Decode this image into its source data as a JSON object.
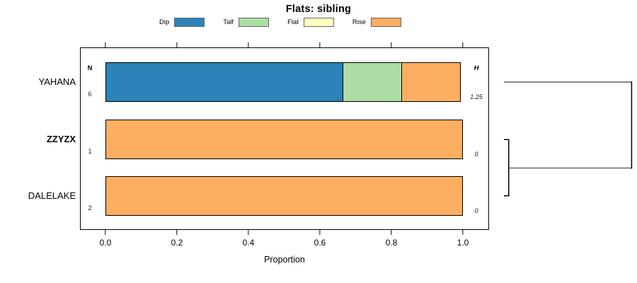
{
  "title": "Flats: sibling",
  "legend": {
    "items": [
      {
        "label": "Dip",
        "color": "#2B83BA"
      },
      {
        "label": "Talf",
        "color": "#ABDDA4"
      },
      {
        "label": "Flat",
        "color": "#FFFFBF"
      },
      {
        "label": "Rise",
        "color": "#FDAE61"
      }
    ]
  },
  "columns": {
    "n_header": "N",
    "h_header": "H"
  },
  "axis": {
    "label": "Proportion",
    "ticks": [
      "0.0",
      "0.2",
      "0.4",
      "0.6",
      "0.8",
      "1.0"
    ],
    "range": [
      0,
      1
    ]
  },
  "chart_data": {
    "type": "bar",
    "orientation": "horizontal",
    "stacked": true,
    "title": "Flats: sibling",
    "xlabel": "Proportion",
    "xlim": [
      0,
      1
    ],
    "grid": false,
    "legend_position": "top",
    "categories": [
      "YAHANA",
      "ZZYZX",
      "DALELAKE"
    ],
    "bold_categories": [
      "ZZYZX"
    ],
    "series": [
      {
        "name": "Dip",
        "color": "#2B83BA",
        "values": [
          0.667,
          0,
          0
        ]
      },
      {
        "name": "Talf",
        "color": "#ABDDA4",
        "values": [
          0.167,
          0,
          0
        ]
      },
      {
        "name": "Flat",
        "color": "#FFFFBF",
        "values": [
          0,
          0,
          0
        ]
      },
      {
        "name": "Rise",
        "color": "#FDAE61",
        "values": [
          0.166,
          1.0,
          1.0
        ]
      }
    ],
    "n_values": [
      "6",
      "1",
      "2"
    ],
    "h_values": [
      "1.25",
      "0",
      "0"
    ],
    "clustering": {
      "first_join": [
        "ZZYZX",
        "DALELAKE"
      ],
      "second_join": [
        "YAHANA",
        "(ZZYZX,DALELAKE)"
      ]
    }
  },
  "colors": {
    "dendrogram_gray": "#878787",
    "dendrogram_black": "#000000",
    "bar_border": "#000000"
  }
}
